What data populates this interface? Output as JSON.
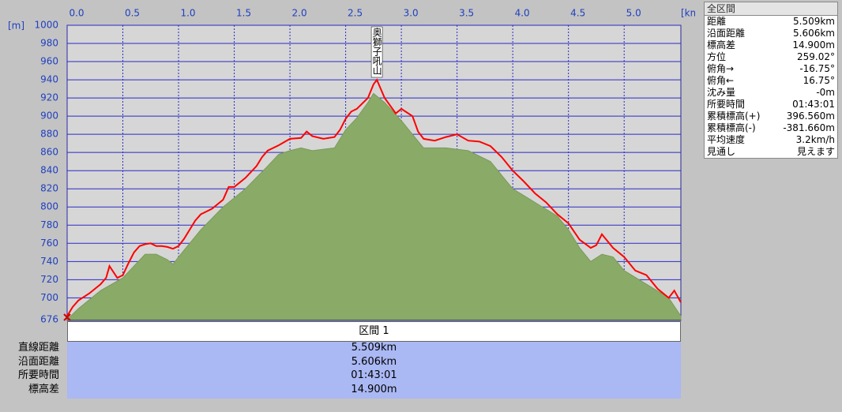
{
  "chart_data": {
    "type": "line",
    "x_label": "[km]",
    "y_label": "[m]",
    "xlim": [
      0,
      5.509
    ],
    "ylim": [
      676,
      1000
    ],
    "xticks": [
      {
        "value": 0,
        "label": "0.0"
      },
      0.5,
      {
        "value": 1,
        "label": "1.0"
      },
      1.5,
      {
        "value": 2,
        "label": "2.0"
      },
      2.5,
      {
        "value": 3,
        "label": "3.0"
      },
      3.5,
      {
        "value": 4,
        "label": "4.0"
      },
      4.5,
      {
        "value": 5,
        "label": "5.0"
      }
    ],
    "yticks": [
      676,
      700,
      720,
      740,
      760,
      780,
      800,
      820,
      840,
      860,
      880,
      900,
      920,
      940,
      960,
      980,
      1000
    ],
    "grid": true,
    "series": [
      {
        "type": "area",
        "color": "#8aab68",
        "x": [
          0,
          0.1,
          0.3,
          0.5,
          0.6,
          0.7,
          0.8,
          0.9,
          0.95,
          1.0,
          1.2,
          1.4,
          1.5,
          1.6,
          1.8,
          1.9,
          2.0,
          2.1,
          2.2,
          2.4,
          2.5,
          2.6,
          2.7,
          2.75,
          2.85,
          3.0,
          3.1,
          3.2,
          3.4,
          3.6,
          3.8,
          4.0,
          4.2,
          4.4,
          4.5,
          4.6,
          4.7,
          4.8,
          4.9,
          5.0,
          5.2,
          5.4,
          5.509
        ],
        "values": [
          676,
          688,
          708,
          722,
          735,
          748,
          748,
          742,
          737,
          745,
          775,
          800,
          810,
          820,
          845,
          858,
          862,
          865,
          862,
          865,
          885,
          898,
          915,
          925,
          915,
          895,
          880,
          865,
          865,
          862,
          850,
          820,
          805,
          790,
          775,
          755,
          740,
          748,
          745,
          730,
          715,
          700,
          680
        ]
      },
      {
        "type": "line",
        "color": "#ff0000",
        "x": [
          0,
          0.05,
          0.1,
          0.2,
          0.25,
          0.3,
          0.35,
          0.38,
          0.45,
          0.5,
          0.55,
          0.6,
          0.65,
          0.7,
          0.75,
          0.8,
          0.85,
          0.9,
          0.95,
          1.0,
          1.05,
          1.1,
          1.15,
          1.2,
          1.3,
          1.4,
          1.45,
          1.5,
          1.6,
          1.7,
          1.75,
          1.8,
          1.9,
          2.0,
          2.1,
          2.15,
          2.2,
          2.3,
          2.4,
          2.45,
          2.5,
          2.55,
          2.6,
          2.7,
          2.75,
          2.78,
          2.85,
          2.95,
          3.0,
          3.1,
          3.15,
          3.2,
          3.3,
          3.4,
          3.5,
          3.6,
          3.7,
          3.8,
          3.9,
          4.0,
          4.1,
          4.2,
          4.3,
          4.4,
          4.5,
          4.6,
          4.7,
          4.75,
          4.8,
          4.9,
          5.0,
          5.1,
          5.2,
          5.3,
          5.4,
          5.45,
          5.509
        ],
        "values": [
          680,
          690,
          697,
          705,
          710,
          715,
          722,
          735,
          722,
          725,
          738,
          750,
          757,
          759,
          760,
          757,
          757,
          756,
          754,
          757,
          765,
          775,
          785,
          792,
          798,
          808,
          822,
          822,
          832,
          845,
          855,
          862,
          868,
          875,
          876,
          883,
          878,
          875,
          877,
          885,
          897,
          905,
          908,
          920,
          935,
          940,
          920,
          903,
          908,
          900,
          883,
          875,
          873,
          877,
          880,
          873,
          872,
          867,
          855,
          840,
          828,
          815,
          805,
          792,
          782,
          764,
          755,
          758,
          770,
          755,
          745,
          730,
          725,
          710,
          700,
          708,
          695
        ]
      }
    ],
    "annotations": [
      {
        "text": "奥獅子吼山",
        "x": 2.78
      }
    ]
  },
  "summary": {
    "title": "全区間",
    "rows": [
      [
        "距離",
        "5.509km"
      ],
      [
        "沿面距離",
        "5.606km"
      ],
      [
        "標高差",
        "14.900m"
      ],
      [
        "方位",
        "259.02°"
      ],
      [
        "俯角→",
        "-16.75°"
      ],
      [
        "俯角←",
        "16.75°"
      ],
      [
        "沈み量",
        "-0m"
      ],
      [
        "所要時間",
        "01:43:01"
      ],
      [
        "累積標高(+)",
        "396.560m"
      ],
      [
        "累積標高(-)",
        "-381.660m"
      ],
      [
        "平均速度",
        "3.2km/h"
      ],
      [
        "見通し",
        "見えます"
      ]
    ]
  },
  "section": {
    "title": "区間 1",
    "rows": [
      [
        "直線距離",
        "5.509km"
      ],
      [
        "沿面距離",
        "5.606km"
      ],
      [
        "所要時間",
        "01:43:01"
      ],
      [
        "標高差",
        "14.900m"
      ]
    ]
  }
}
